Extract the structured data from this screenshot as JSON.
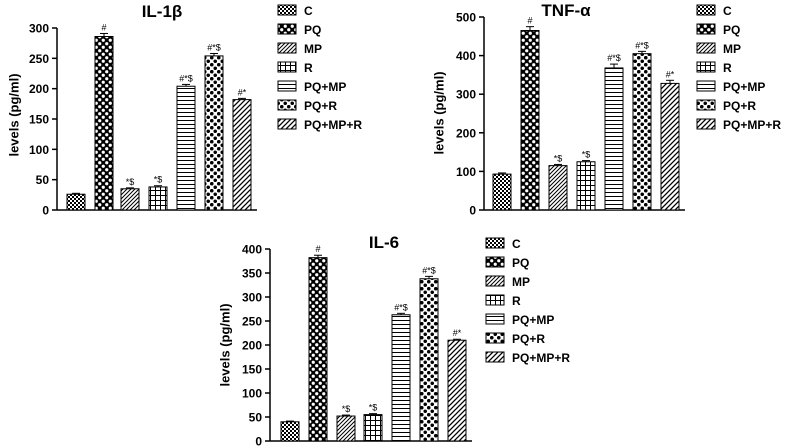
{
  "groups": [
    "C",
    "PQ",
    "MP",
    "R",
    "PQ+MP",
    "PQ+R",
    "PQ+MP+R"
  ],
  "chart_data": [
    {
      "type": "bar",
      "title": "IL-1β",
      "ylabel": "levels (pg/ml)",
      "ylim": [
        0,
        300
      ],
      "yticks": [
        0,
        50,
        100,
        150,
        200,
        250,
        300
      ],
      "categories": [
        "C",
        "PQ",
        "MP",
        "R",
        "PQ+MP",
        "PQ+R",
        "PQ+MP+R"
      ],
      "values": [
        26,
        286,
        35,
        38,
        204,
        254,
        182
      ],
      "errors": [
        1.5,
        5,
        1.5,
        2,
        3,
        4,
        2
      ],
      "annotations": [
        "",
        "#",
        "*$",
        "*$",
        "#*$",
        "#*$",
        "#*"
      ]
    },
    {
      "type": "bar",
      "title": "TNF-α",
      "ylabel": "levels (pg/ml)",
      "ylim": [
        0,
        500
      ],
      "yticks": [
        0,
        100,
        200,
        300,
        400,
        500
      ],
      "categories": [
        "C",
        "PQ",
        "MP",
        "R",
        "PQ+MP",
        "PQ+R",
        "PQ+MP+R"
      ],
      "values": [
        93,
        465,
        115,
        125,
        368,
        405,
        328
      ],
      "errors": [
        3,
        10,
        3,
        3,
        10,
        6,
        8
      ],
      "annotations": [
        "",
        "#",
        "*$",
        "*$",
        "#*$",
        "#*$",
        "#*"
      ]
    },
    {
      "type": "bar",
      "title": "IL-6",
      "ylabel": "levels (pg/ml)",
      "ylim": [
        0,
        400
      ],
      "yticks": [
        0,
        50,
        100,
        150,
        200,
        250,
        300,
        350,
        400
      ],
      "categories": [
        "C",
        "PQ",
        "MP",
        "R",
        "PQ+MP",
        "PQ+R",
        "PQ+MP+R"
      ],
      "values": [
        40,
        382,
        52,
        55,
        263,
        338,
        210
      ],
      "errors": [
        1.5,
        5,
        2,
        2,
        3,
        5,
        2
      ],
      "annotations": [
        "",
        "#",
        "*$",
        "*$",
        "#*$",
        "#*$",
        "#*"
      ]
    }
  ]
}
